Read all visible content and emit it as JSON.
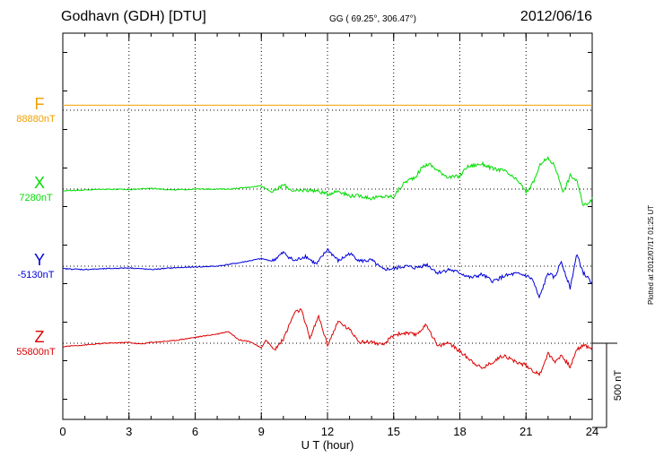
{
  "header": {
    "station": "Godhavn (GDH)  [DTU]",
    "coords": "GG ( 69.25°, 306.47°)",
    "date": "2012/06/16"
  },
  "plotted_at": "Plotted at 2012/07/17 01:25 UT",
  "colors": {
    "F": "#f0a000",
    "X": "#00dd00",
    "Y": "#0000dd",
    "Z": "#dd0000"
  },
  "chart_data": {
    "type": "line",
    "title": "Godhavn (GDH)  [DTU]",
    "xlabel": "U T (hour)",
    "xlim": [
      0,
      24
    ],
    "xticks": [
      0,
      3,
      6,
      9,
      12,
      15,
      18,
      21,
      24
    ],
    "xtick_labels": [
      "0",
      "3",
      "6",
      "9",
      "12",
      "15",
      "18",
      "21",
      "24"
    ],
    "scale_bar": {
      "label": "500 nT",
      "value": 500
    },
    "grid": true,
    "components": [
      {
        "name": "F",
        "baseline": 88880,
        "baseline_label": "88880nT",
        "color": "#f0a000",
        "x": [
          0,
          24
        ],
        "dev": [
          30,
          30
        ]
      },
      {
        "name": "X",
        "baseline": 7280,
        "baseline_label": "7280nT",
        "color": "#00dd00",
        "x": [
          0,
          1,
          2,
          3,
          4,
          5,
          6,
          7,
          7.5,
          8,
          9,
          9.5,
          10,
          10.5,
          11,
          11.5,
          12,
          12.5,
          13,
          13.5,
          14,
          14.5,
          15,
          15.2,
          15.5,
          16,
          16.3,
          16.6,
          17,
          17.5,
          18,
          18.3,
          18.6,
          19,
          19.5,
          20,
          20.3,
          20.7,
          21,
          21.3,
          21.7,
          22,
          22.3,
          22.7,
          23,
          23.3,
          23.6,
          24
        ],
        "dev": [
          -10,
          -5,
          0,
          -3,
          5,
          -5,
          0,
          0,
          0,
          5,
          20,
          -20,
          25,
          -15,
          -5,
          -10,
          -30,
          -10,
          -40,
          -40,
          -55,
          -45,
          -45,
          -10,
          40,
          75,
          130,
          150,
          110,
          70,
          75,
          130,
          140,
          150,
          120,
          110,
          80,
          40,
          -20,
          30,
          160,
          180,
          140,
          -20,
          80,
          50,
          -100,
          -60
        ]
      },
      {
        "name": "Y",
        "baseline": -5130,
        "baseline_label": "-5130nT",
        "color": "#0000dd",
        "x": [
          0,
          1,
          2,
          3,
          4,
          5,
          6,
          7,
          7.5,
          8,
          9,
          9.5,
          10,
          10.5,
          11,
          11.5,
          12,
          12.5,
          13,
          13.5,
          14,
          14.5,
          15,
          15.5,
          16,
          16.5,
          17,
          17.5,
          18,
          18.5,
          19,
          19.5,
          20,
          20.5,
          21,
          21.3,
          21.6,
          22,
          22.3,
          22.6,
          23,
          23.3,
          23.6,
          24
        ],
        "dev": [
          -15,
          -20,
          -15,
          -10,
          -20,
          -10,
          -5,
          0,
          10,
          20,
          45,
          30,
          80,
          30,
          60,
          10,
          100,
          30,
          75,
          30,
          35,
          -20,
          -15,
          0,
          -10,
          10,
          -40,
          -20,
          -40,
          -70,
          -50,
          -90,
          -60,
          -45,
          -55,
          -80,
          -190,
          -40,
          -70,
          30,
          -130,
          70,
          -40,
          -100
        ]
      },
      {
        "name": "Z",
        "baseline": 55800,
        "baseline_label": "55800nT",
        "color": "#dd0000",
        "x": [
          0,
          1,
          2,
          3,
          3.5,
          4,
          5,
          6,
          7,
          7.5,
          8,
          8.5,
          9,
          9.2,
          9.6,
          10,
          10.5,
          10.8,
          11.2,
          11.6,
          12,
          12.5,
          13,
          13.5,
          14,
          14.5,
          15,
          15.5,
          16,
          16.5,
          17,
          17.5,
          18,
          18.5,
          19,
          19.5,
          20,
          20.5,
          21,
          21.3,
          21.6,
          22,
          22.3,
          22.6,
          23,
          23.3,
          23.6,
          24
        ],
        "dev": [
          -20,
          -10,
          0,
          5,
          -5,
          5,
          15,
          35,
          55,
          70,
          20,
          10,
          -30,
          20,
          -40,
          25,
          180,
          200,
          30,
          160,
          -10,
          130,
          80,
          5,
          10,
          -15,
          50,
          60,
          50,
          110,
          -20,
          5,
          -50,
          -100,
          -150,
          -110,
          -70,
          -110,
          -130,
          -160,
          -190,
          -60,
          -110,
          -70,
          -140,
          -40,
          -10,
          -30
        ]
      }
    ]
  }
}
